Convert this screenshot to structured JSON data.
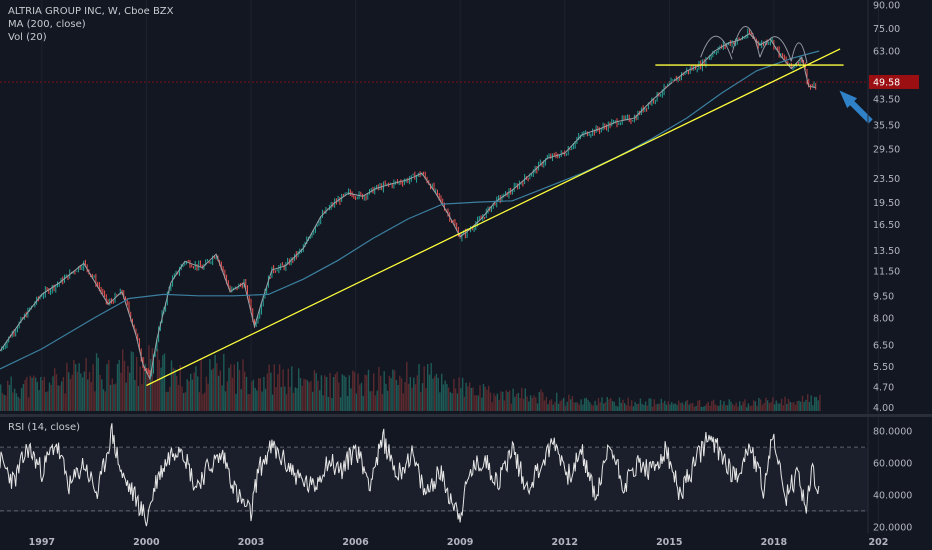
{
  "legend": {
    "symbol_line": "ALTRIA GROUP INC, W, Cboe BZX",
    "ma_line": "MA (200, close)",
    "vol_line": "Vol (20)",
    "rsi_line": "RSI (14, close)"
  },
  "price_label": "49.58",
  "colors": {
    "background": "#131722",
    "up": "#26a69a",
    "down": "#ef5350",
    "ma": "#3b7f9f",
    "trendline": "#ffff3b",
    "rsi": "#e6e6e6",
    "price_marker": "#9b0e12",
    "arrow": "#2f82c8"
  },
  "chart_data": [
    {
      "type": "line",
      "title": "ALTRIA GROUP INC, W, Cboe BZX",
      "scale": "log",
      "y_ticks": [
        "90.00",
        "75.00",
        "63.00",
        "49.58",
        "43.50",
        "35.50",
        "29.50",
        "23.50",
        "19.50",
        "16.50",
        "13.50",
        "11.50",
        "9.50",
        "8.00",
        "6.50",
        "5.50",
        "4.70",
        "4.00"
      ],
      "ylim": [
        3.9,
        92
      ],
      "x_ticks": [
        "1997",
        "2000",
        "2003",
        "2006",
        "2009",
        "2012",
        "2015",
        "2018",
        "202"
      ],
      "xlim": [
        1995.8,
        2020.7
      ],
      "series": [
        {
          "name": "ALTRIA GROUP INC",
          "x": [
            1995.8,
            1996.4,
            1997.0,
            1997.5,
            1998.2,
            1998.9,
            1999.3,
            1999.7,
            1999.9,
            2000.1,
            2000.3,
            2000.7,
            2001.1,
            2001.6,
            2002.0,
            2002.4,
            2002.8,
            2003.1,
            2003.3,
            2003.6,
            2004.0,
            2004.5,
            2005.0,
            2005.4,
            2005.8,
            2006.2,
            2006.6,
            2007.0,
            2007.5,
            2007.9,
            2008.3,
            2008.7,
            2009.0,
            2009.2,
            2009.6,
            2010.0,
            2010.5,
            2011.0,
            2011.5,
            2012.0,
            2012.5,
            2013.0,
            2013.5,
            2014.0,
            2014.5,
            2015.0,
            2015.5,
            2015.9,
            2016.3,
            2016.7,
            2017.0,
            2017.3,
            2017.6,
            2017.9,
            2018.2,
            2018.5,
            2018.8,
            2019.0,
            2019.2
          ],
          "values": [
            6.2,
            7.8,
            9.6,
            10.5,
            12.2,
            8.9,
            9.8,
            7.0,
            5.6,
            5.0,
            6.8,
            10.5,
            12.4,
            11.8,
            13.1,
            9.8,
            10.5,
            7.5,
            9.0,
            11.6,
            12.0,
            13.7,
            17.5,
            19.5,
            21.0,
            20.5,
            21.8,
            22.5,
            23.3,
            24.5,
            21.0,
            17.5,
            15.0,
            15.6,
            17.2,
            19.6,
            21.5,
            24.2,
            27.5,
            28.6,
            33.0,
            34.5,
            36.5,
            37.5,
            43.0,
            48.5,
            54.0,
            56.5,
            63.0,
            67.0,
            68.5,
            72.0,
            66.0,
            69.0,
            60.5,
            55.0,
            60.0,
            48.0,
            47.5
          ]
        },
        {
          "name": "MA (200, close)",
          "x": [
            1995.8,
            1997.0,
            1998.5,
            1999.5,
            2000.5,
            2001.5,
            2002.5,
            2003.5,
            2004.5,
            2005.5,
            2006.5,
            2007.5,
            2008.5,
            2009.5,
            2010.5,
            2011.5,
            2012.5,
            2013.5,
            2014.5,
            2015.5,
            2016.5,
            2017.5,
            2018.5,
            2019.3
          ],
          "values": [
            5.4,
            6.3,
            8.0,
            9.3,
            9.6,
            9.5,
            9.5,
            9.6,
            10.8,
            12.5,
            14.8,
            17.2,
            19.3,
            19.6,
            19.8,
            22.0,
            24.5,
            27.8,
            32.0,
            37.5,
            45.5,
            54.0,
            59.5,
            63.0
          ]
        }
      ],
      "annotations": [
        {
          "type": "trendline",
          "x": [
            2000.0,
            2019.9
          ],
          "values": [
            4.75,
            64.0
          ]
        },
        {
          "type": "horizontal_line",
          "x": [
            2014.6,
            2020.0
          ],
          "value": 56.5
        },
        {
          "type": "arcs",
          "description": "three arcs drawn over the 2016–2018 top"
        },
        {
          "type": "arrow",
          "description": "blue arrow pointing up-left at price"
        }
      ]
    },
    {
      "type": "bar",
      "title": "Vol (20)",
      "x": [
        1996,
        1997,
        1998,
        1999,
        2000,
        2001,
        2002,
        2003,
        2004,
        2005,
        2006,
        2007,
        2008,
        2009,
        2010,
        2011,
        2012,
        2013,
        2014,
        2015,
        2016,
        2017,
        2018,
        2019
      ],
      "values": [
        0.3,
        0.35,
        0.45,
        0.55,
        0.6,
        0.4,
        0.5,
        0.45,
        0.4,
        0.35,
        0.35,
        0.4,
        0.45,
        0.3,
        0.2,
        0.2,
        0.15,
        0.12,
        0.12,
        0.1,
        0.1,
        0.1,
        0.12,
        0.15
      ]
    },
    {
      "type": "line",
      "title": "RSI (14, close)",
      "y_ticks": [
        "80.0000",
        "60.0000",
        "40.0000",
        "20.0000"
      ],
      "ylim": [
        18,
        87
      ],
      "reference_lines": [
        30,
        70
      ],
      "x": [
        1995.8,
        1996.2,
        1996.6,
        1997.0,
        1997.4,
        1997.8,
        1998.2,
        1998.6,
        1999.0,
        1999.3,
        1999.7,
        2000.0,
        2000.3,
        2000.7,
        2001.0,
        2001.4,
        2001.8,
        2002.2,
        2002.6,
        2003.0,
        2003.2,
        2003.6,
        2004.0,
        2004.4,
        2004.8,
        2005.2,
        2005.6,
        2006.0,
        2006.4,
        2006.8,
        2007.2,
        2007.6,
        2008.0,
        2008.4,
        2008.8,
        2009.0,
        2009.3,
        2009.7,
        2010.1,
        2010.5,
        2010.9,
        2011.3,
        2011.7,
        2012.1,
        2012.5,
        2012.9,
        2013.3,
        2013.7,
        2014.1,
        2014.5,
        2014.9,
        2015.3,
        2015.7,
        2016.1,
        2016.5,
        2016.9,
        2017.3,
        2017.7,
        2018.0,
        2018.3,
        2018.7,
        2018.9,
        2019.1,
        2019.3
      ],
      "values": [
        62,
        48,
        70,
        55,
        73,
        45,
        60,
        40,
        80,
        52,
        38,
        24,
        50,
        66,
        72,
        45,
        58,
        65,
        40,
        28,
        55,
        70,
        60,
        50,
        44,
        62,
        55,
        70,
        48,
        75,
        52,
        66,
        40,
        55,
        35,
        28,
        55,
        62,
        48,
        70,
        44,
        58,
        74,
        52,
        66,
        38,
        72,
        46,
        60,
        54,
        68,
        40,
        58,
        76,
        66,
        50,
        72,
        44,
        78,
        36,
        55,
        30,
        56,
        42
      ]
    }
  ]
}
